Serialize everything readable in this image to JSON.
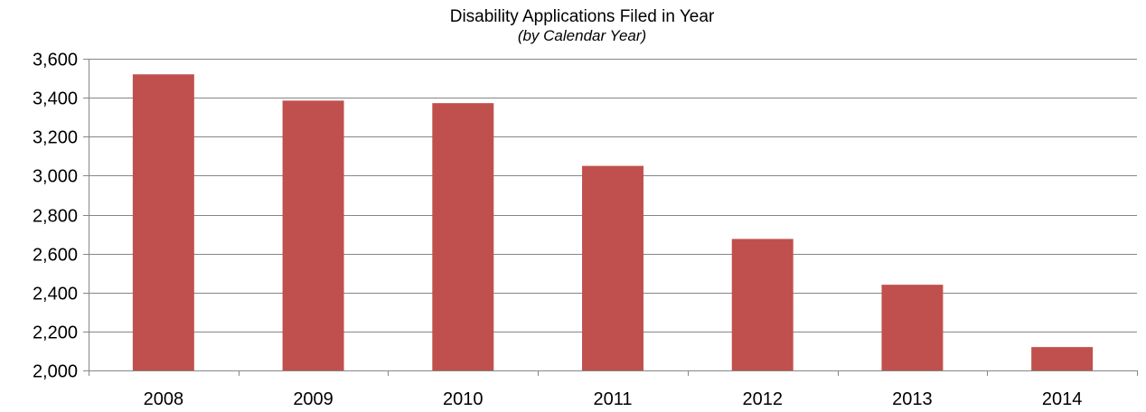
{
  "chart_data": {
    "type": "bar",
    "title": "Disability Applications Filed in Year",
    "subtitle": "(by Calendar Year)",
    "categories": [
      "2008",
      "2009",
      "2010",
      "2011",
      "2012",
      "2013",
      "2014"
    ],
    "values": [
      3520,
      3385,
      3372,
      3050,
      2675,
      2440,
      2120
    ],
    "ylim": [
      2000,
      3600
    ],
    "yticks": [
      2000,
      2200,
      2400,
      2600,
      2800,
      3000,
      3200,
      3400,
      3600
    ],
    "ytick_labels": [
      "2,000",
      "2,200",
      "2,400",
      "2,600",
      "2,800",
      "3,000",
      "3,200",
      "3,400",
      "3,600"
    ],
    "grid": true,
    "bar_color": "#C0504D",
    "gridline_color": "#868686"
  }
}
